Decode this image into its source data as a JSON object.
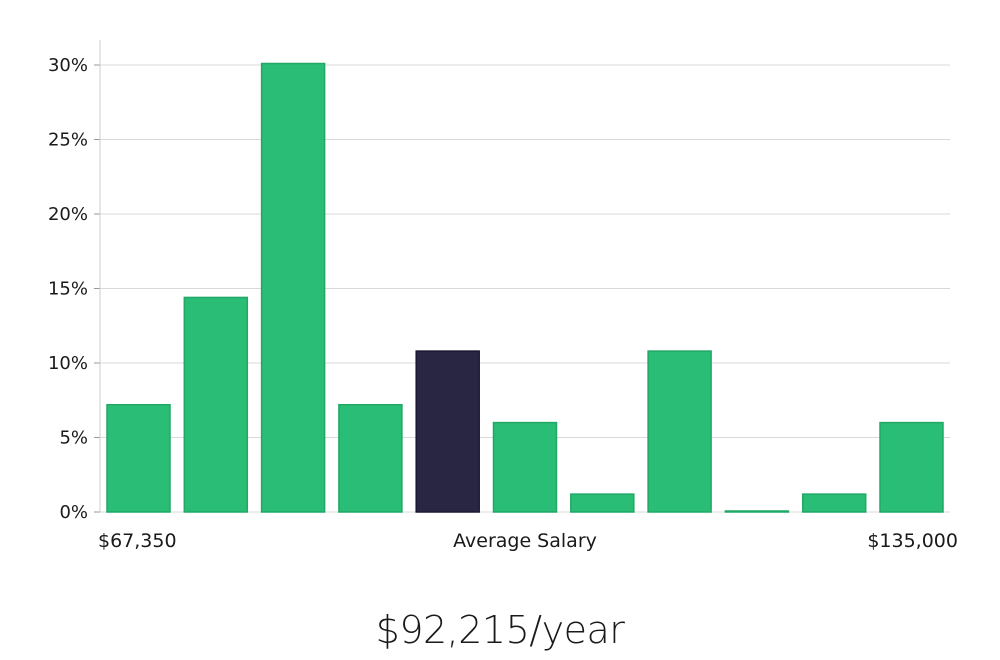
{
  "chart_data": {
    "type": "bar",
    "title": "",
    "ylabel": "",
    "categories": [
      "1",
      "2",
      "3",
      "4",
      "5",
      "6",
      "7",
      "8",
      "9",
      "10",
      "11"
    ],
    "values": [
      7.2,
      14.4,
      30.1,
      7.2,
      10.8,
      6.0,
      1.2,
      10.8,
      0.05,
      1.2,
      6.0
    ],
    "highlight_index": 4,
    "ylim": [
      0,
      31.5
    ],
    "yticks": [
      0,
      5,
      10,
      15,
      20,
      25,
      30
    ],
    "ytick_labels": [
      "0%",
      "5%",
      "10%",
      "15%",
      "20%",
      "25%",
      "30%"
    ],
    "grid": "horizontal",
    "colors": {
      "bar": "#29bd76",
      "bar_edge": "#21a866",
      "highlight": "#282643",
      "grid": "#d9d9d9",
      "axis": "#cccccc"
    },
    "x_labels": {
      "min": "$67,350",
      "center": "Average Salary",
      "max": "$135,000"
    }
  },
  "summary": {
    "average_salary": "$92,215/year"
  }
}
